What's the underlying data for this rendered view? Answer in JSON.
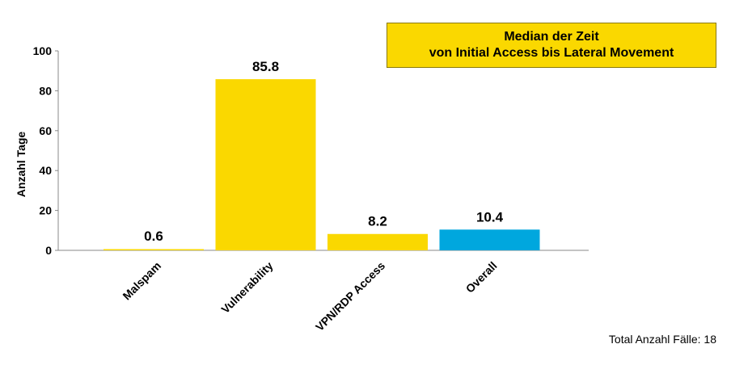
{
  "chart_data": {
    "type": "bar",
    "title": [
      "Median der Zeit",
      "von Initial Access bis Lateral Movement"
    ],
    "ylabel": "Anzahl Tage",
    "xlabel": "",
    "ylim": [
      0,
      100
    ],
    "yticks": [
      0,
      20,
      40,
      60,
      80,
      100
    ],
    "categories": [
      "Malspam",
      "Vulnerability",
      "VPN/RDP Access",
      "Overall"
    ],
    "values": [
      0.6,
      85.8,
      8.2,
      10.4
    ],
    "value_labels": [
      "0.6",
      "85.8",
      "8.2",
      "10.4"
    ],
    "colors": [
      "#fad800",
      "#fad800",
      "#fad800",
      "#00a7de"
    ],
    "grid": false,
    "footnote": "Total Anzahl Fälle: 18"
  }
}
